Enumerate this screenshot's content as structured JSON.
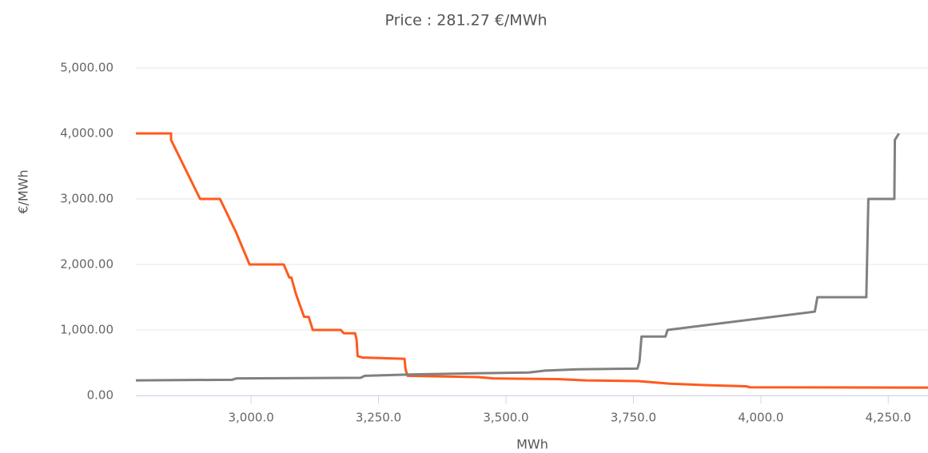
{
  "chart_data": {
    "type": "line",
    "title": "Price : 281.27 €/MWh",
    "x_label": "MWh",
    "y_label": "€/MWh",
    "xlim": [
      2774,
      4328
    ],
    "ylim": [
      0,
      5000
    ],
    "xticks": [
      {
        "value": 3000,
        "label": "3,000.0"
      },
      {
        "value": 3250,
        "label": "3,250.0"
      },
      {
        "value": 3500,
        "label": "3,500.0"
      },
      {
        "value": 3750,
        "label": "3,750.0"
      },
      {
        "value": 4000,
        "label": "4,000.0"
      },
      {
        "value": 4250,
        "label": "4,250.0"
      }
    ],
    "yticks": [
      {
        "value": 0,
        "label": "0.00"
      },
      {
        "value": 1000,
        "label": "1,000.00"
      },
      {
        "value": 2000,
        "label": "2,000.00"
      },
      {
        "value": 3000,
        "label": "3,000.00"
      },
      {
        "value": 4000,
        "label": "4,000.00"
      },
      {
        "value": 5000,
        "label": "5,000.00"
      }
    ],
    "grid": true,
    "series": [
      {
        "color": "#ff5a1e",
        "x": [
          2774,
          2843,
          2843,
          2900,
          2939,
          2970,
          2997,
          3064,
          3075,
          3079,
          3088,
          3104,
          3113,
          3121,
          3176,
          3182,
          3204,
          3207,
          3209,
          3218,
          3301,
          3303,
          3307,
          3445,
          3476,
          3602,
          3657,
          3759,
          3822,
          3885,
          3971,
          3979,
          4328
        ],
        "values": [
          4000,
          4000,
          3900,
          3000,
          3000,
          2500,
          2000,
          2000,
          1800,
          1800,
          1550,
          1200,
          1200,
          1000,
          1000,
          950,
          950,
          850,
          600,
          580,
          560,
          400,
          300,
          280,
          260,
          250,
          230,
          220,
          180,
          160,
          140,
          125,
          120
        ]
      },
      {
        "color": "#808080",
        "x": [
          2774,
          2963,
          2971,
          3215,
          3223,
          3309,
          3451,
          3545,
          3577,
          3640,
          3758,
          3762,
          3766,
          3813,
          3817,
          4106,
          4111,
          4207,
          4211,
          4262,
          4263,
          4271
        ],
        "values": [
          230,
          240,
          260,
          270,
          300,
          320,
          340,
          350,
          380,
          400,
          410,
          520,
          900,
          900,
          1000,
          1280,
          1500,
          1500,
          3000,
          3000,
          3900,
          4000
        ]
      }
    ]
  }
}
